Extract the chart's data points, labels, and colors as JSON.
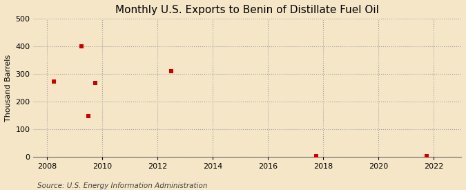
{
  "title": "Monthly U.S. Exports to Benin of Distillate Fuel Oil",
  "ylabel": "Thousand Barrels",
  "source": "Source: U.S. Energy Information Administration",
  "background_color": "#f5e6c8",
  "plot_background_color": "#f5e6c8",
  "marker_color": "#cc0000",
  "marker": "s",
  "marker_size": 16,
  "x_data": [
    2008.25,
    2009.25,
    2009.5,
    2009.75,
    2012.5,
    2017.75,
    2021.75
  ],
  "y_data": [
    272,
    400,
    148,
    268,
    311,
    2,
    2
  ],
  "xlim": [
    2007.5,
    2023
  ],
  "ylim": [
    0,
    500
  ],
  "xticks": [
    2008,
    2010,
    2012,
    2014,
    2016,
    2018,
    2020,
    2022
  ],
  "yticks": [
    0,
    100,
    200,
    300,
    400,
    500
  ],
  "grid_color": "#999999",
  "grid_style": ":",
  "grid_alpha": 0.9,
  "title_fontsize": 11,
  "label_fontsize": 8,
  "tick_fontsize": 8,
  "source_fontsize": 7.5
}
